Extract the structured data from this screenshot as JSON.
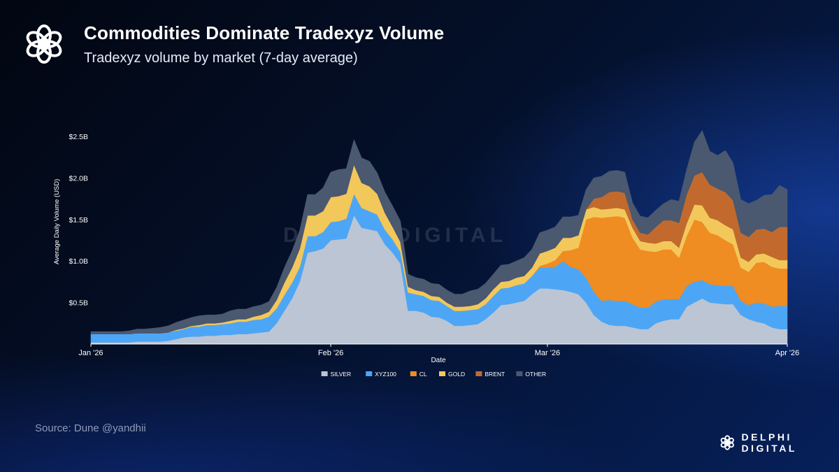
{
  "header": {
    "title": "Commodities Dominate Tradexyz Volume",
    "subtitle": "Tradexyz volume by market (7-day average)"
  },
  "footer": {
    "source": "Source: Dune @yandhii",
    "brand": "DELPHI DIGITAL"
  },
  "watermark": "DELPHI DIGITAL",
  "icons": {
    "logo": "delphi-flower-logo"
  },
  "chart_data": {
    "type": "area",
    "stacked": true,
    "title": "",
    "xlabel": "Date",
    "ylabel": "Average Daily Volume (USD)",
    "xlim": [
      0,
      90
    ],
    "ylim": [
      0,
      2.5
    ],
    "y_unit": "B USD",
    "x_ticks": [
      {
        "value": 0,
        "label": "Jan '26"
      },
      {
        "value": 31,
        "label": "Feb '26"
      },
      {
        "value": 59,
        "label": "Mar '26"
      },
      {
        "value": 90,
        "label": "Apr '26"
      }
    ],
    "y_ticks": [
      {
        "value": 0.5,
        "label": "$0.5B"
      },
      {
        "value": 1.0,
        "label": "$1.0B"
      },
      {
        "value": 1.5,
        "label": "$1.5B"
      },
      {
        "value": 2.0,
        "label": "$2.0B"
      },
      {
        "value": 2.5,
        "label": "$2.5B"
      }
    ],
    "grid": false,
    "legend_position": "bottom",
    "x": [
      0,
      1,
      2,
      3,
      4,
      5,
      6,
      7,
      8,
      9,
      10,
      11,
      12,
      13,
      14,
      15,
      16,
      17,
      18,
      19,
      20,
      21,
      22,
      23,
      24,
      25,
      26,
      27,
      28,
      29,
      30,
      31,
      32,
      33,
      34,
      35,
      36,
      37,
      38,
      39,
      40,
      41,
      42,
      43,
      44,
      45,
      46,
      47,
      48,
      49,
      50,
      51,
      52,
      53,
      54,
      55,
      56,
      57,
      58,
      59,
      60,
      61,
      62,
      63,
      64,
      65,
      66,
      67,
      68,
      69,
      70,
      71,
      72,
      73,
      74,
      75,
      76,
      77,
      78,
      79,
      80,
      81,
      82,
      83,
      84,
      85,
      86,
      87,
      88,
      89,
      90
    ],
    "series": [
      {
        "name": "SILVER",
        "color": "#bcc5d3",
        "values": [
          0.02,
          0.02,
          0.02,
          0.02,
          0.02,
          0.02,
          0.03,
          0.03,
          0.03,
          0.03,
          0.04,
          0.06,
          0.08,
          0.09,
          0.09,
          0.1,
          0.1,
          0.11,
          0.11,
          0.12,
          0.12,
          0.13,
          0.14,
          0.15,
          0.25,
          0.4,
          0.55,
          0.75,
          1.1,
          1.12,
          1.15,
          1.25,
          1.26,
          1.27,
          1.55,
          1.4,
          1.38,
          1.36,
          1.2,
          1.1,
          0.97,
          0.4,
          0.4,
          0.38,
          0.33,
          0.32,
          0.28,
          0.22,
          0.22,
          0.23,
          0.24,
          0.3,
          0.38,
          0.47,
          0.48,
          0.5,
          0.52,
          0.6,
          0.67,
          0.67,
          0.66,
          0.65,
          0.63,
          0.6,
          0.5,
          0.35,
          0.27,
          0.23,
          0.22,
          0.22,
          0.2,
          0.18,
          0.18,
          0.25,
          0.28,
          0.3,
          0.3,
          0.45,
          0.5,
          0.55,
          0.5,
          0.49,
          0.48,
          0.48,
          0.35,
          0.3,
          0.27,
          0.25,
          0.2,
          0.18,
          0.18
        ]
      },
      {
        "name": "XYZ100",
        "color": "#4da6f5",
        "values": [
          0.1,
          0.1,
          0.1,
          0.1,
          0.1,
          0.1,
          0.1,
          0.1,
          0.1,
          0.1,
          0.1,
          0.1,
          0.1,
          0.12,
          0.12,
          0.13,
          0.13,
          0.13,
          0.14,
          0.15,
          0.15,
          0.16,
          0.16,
          0.18,
          0.18,
          0.19,
          0.19,
          0.18,
          0.2,
          0.18,
          0.2,
          0.22,
          0.22,
          0.24,
          0.26,
          0.24,
          0.22,
          0.2,
          0.18,
          0.16,
          0.14,
          0.22,
          0.2,
          0.2,
          0.2,
          0.2,
          0.18,
          0.18,
          0.18,
          0.18,
          0.18,
          0.18,
          0.2,
          0.2,
          0.2,
          0.21,
          0.21,
          0.22,
          0.25,
          0.25,
          0.27,
          0.35,
          0.3,
          0.3,
          0.3,
          0.28,
          0.25,
          0.3,
          0.3,
          0.3,
          0.28,
          0.26,
          0.26,
          0.26,
          0.26,
          0.24,
          0.24,
          0.25,
          0.25,
          0.22,
          0.22,
          0.22,
          0.22,
          0.22,
          0.17,
          0.17,
          0.23,
          0.24,
          0.25,
          0.28,
          0.28
        ]
      },
      {
        "name": "CL",
        "color": "#ef8c22",
        "values": [
          0,
          0,
          0,
          0,
          0,
          0,
          0,
          0,
          0,
          0,
          0,
          0,
          0,
          0,
          0,
          0,
          0,
          0,
          0,
          0,
          0,
          0,
          0,
          0,
          0,
          0,
          0,
          0,
          0,
          0,
          0,
          0,
          0,
          0,
          0,
          0,
          0,
          0,
          0,
          0,
          0,
          0,
          0,
          0,
          0,
          0,
          0,
          0,
          0,
          0,
          0,
          0,
          0,
          0,
          0,
          0,
          0,
          0,
          0.02,
          0.05,
          0.08,
          0.12,
          0.2,
          0.26,
          0.7,
          0.9,
          1.0,
          1.0,
          1.02,
          1.0,
          0.8,
          0.7,
          0.68,
          0.6,
          0.6,
          0.6,
          0.5,
          0.6,
          0.75,
          0.7,
          0.62,
          0.6,
          0.55,
          0.5,
          0.4,
          0.4,
          0.48,
          0.5,
          0.48,
          0.45,
          0.45
        ]
      },
      {
        "name": "GOLD",
        "color": "#f2c85b",
        "values": [
          0,
          0,
          0,
          0,
          0,
          0,
          0,
          0,
          0,
          0,
          0,
          0.01,
          0.01,
          0.01,
          0.02,
          0.02,
          0.02,
          0.02,
          0.03,
          0.03,
          0.03,
          0.04,
          0.05,
          0.06,
          0.1,
          0.15,
          0.18,
          0.22,
          0.25,
          0.25,
          0.25,
          0.3,
          0.3,
          0.3,
          0.35,
          0.3,
          0.3,
          0.25,
          0.2,
          0.15,
          0.12,
          0.07,
          0.05,
          0.05,
          0.05,
          0.05,
          0.04,
          0.05,
          0.05,
          0.05,
          0.06,
          0.07,
          0.08,
          0.08,
          0.08,
          0.09,
          0.09,
          0.1,
          0.15,
          0.15,
          0.15,
          0.16,
          0.15,
          0.15,
          0.12,
          0.12,
          0.1,
          0.1,
          0.1,
          0.1,
          0.12,
          0.1,
          0.1,
          0.1,
          0.1,
          0.1,
          0.12,
          0.15,
          0.18,
          0.2,
          0.18,
          0.18,
          0.18,
          0.18,
          0.12,
          0.12,
          0.1,
          0.1,
          0.12,
          0.1,
          0.1
        ]
      },
      {
        "name": "BRENT",
        "color": "#c26a2e",
        "values": [
          0,
          0,
          0,
          0,
          0,
          0,
          0,
          0,
          0,
          0,
          0,
          0,
          0,
          0,
          0,
          0,
          0,
          0,
          0,
          0,
          0,
          0,
          0,
          0,
          0,
          0,
          0,
          0,
          0,
          0,
          0,
          0,
          0,
          0,
          0,
          0,
          0,
          0,
          0,
          0,
          0,
          0,
          0,
          0,
          0,
          0,
          0,
          0,
          0,
          0,
          0,
          0,
          0,
          0,
          0,
          0,
          0,
          0,
          0,
          0,
          0,
          0,
          0,
          0,
          0,
          0.1,
          0.15,
          0.2,
          0.2,
          0.2,
          0.1,
          0.1,
          0.1,
          0.2,
          0.25,
          0.25,
          0.3,
          0.35,
          0.35,
          0.4,
          0.4,
          0.38,
          0.4,
          0.35,
          0.3,
          0.3,
          0.3,
          0.3,
          0.3,
          0.4,
          0.4
        ]
      },
      {
        "name": "OTHER",
        "color": "#4a5870",
        "values": [
          0.03,
          0.03,
          0.03,
          0.03,
          0.03,
          0.04,
          0.05,
          0.05,
          0.06,
          0.07,
          0.08,
          0.09,
          0.1,
          0.1,
          0.11,
          0.1,
          0.1,
          0.1,
          0.12,
          0.12,
          0.12,
          0.12,
          0.12,
          0.12,
          0.15,
          0.18,
          0.2,
          0.22,
          0.25,
          0.25,
          0.28,
          0.3,
          0.32,
          0.3,
          0.3,
          0.3,
          0.3,
          0.25,
          0.25,
          0.25,
          0.25,
          0.15,
          0.15,
          0.15,
          0.15,
          0.15,
          0.15,
          0.15,
          0.15,
          0.18,
          0.18,
          0.18,
          0.18,
          0.2,
          0.2,
          0.2,
          0.22,
          0.22,
          0.25,
          0.25,
          0.25,
          0.25,
          0.25,
          0.24,
          0.24,
          0.25,
          0.25,
          0.25,
          0.25,
          0.25,
          0.2,
          0.2,
          0.2,
          0.2,
          0.2,
          0.25,
          0.26,
          0.3,
          0.4,
          0.5,
          0.4,
          0.4,
          0.5,
          0.45,
          0.4,
          0.4,
          0.35,
          0.4,
          0.45,
          0.5,
          0.45
        ]
      }
    ]
  }
}
